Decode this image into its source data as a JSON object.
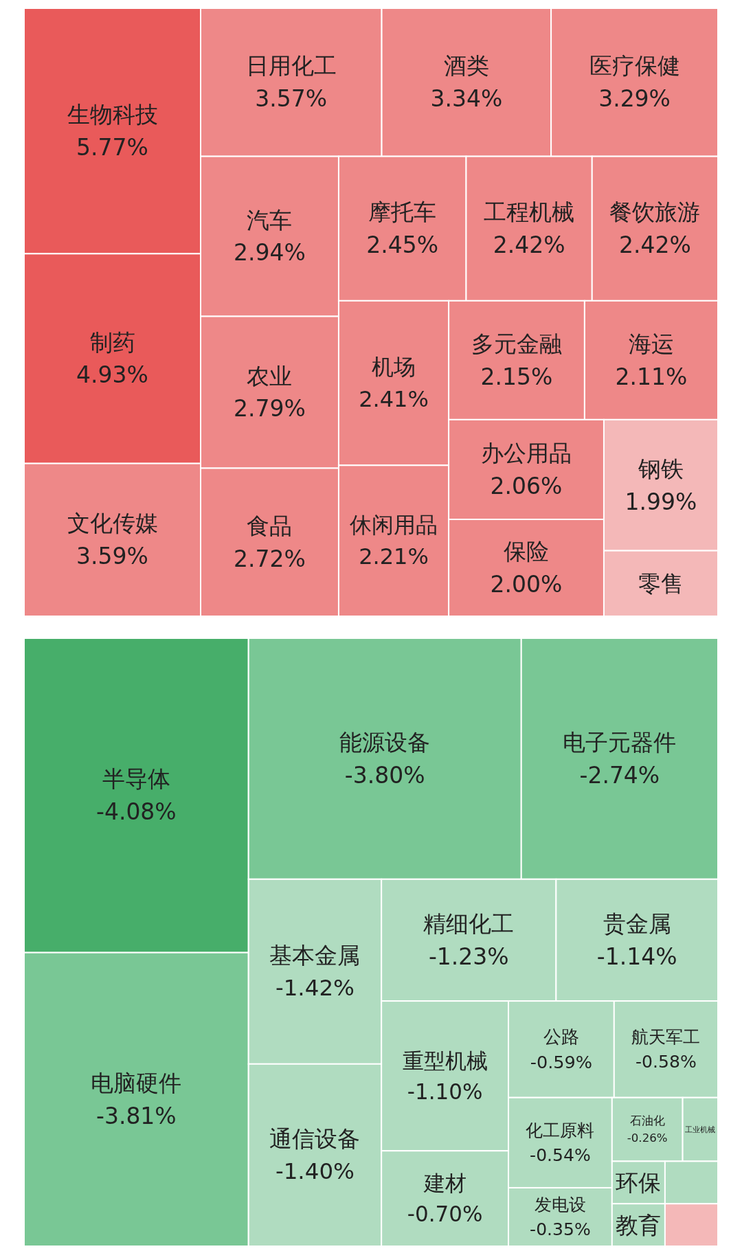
{
  "chart_data": [
    {
      "type": "other",
      "categories": [
        "生物科技",
        "制药",
        "文化传媒",
        "日用化工",
        "酒类",
        "医疗保健",
        "汽车",
        "农业",
        "食品",
        "摩托车",
        "工程机械",
        "餐饮旅游",
        "机场",
        "休闲用品",
        "多元金融",
        "海运",
        "办公用品",
        "保险",
        "钢铁",
        "零售"
      ],
      "values": [
        5.77,
        4.93,
        3.59,
        3.57,
        3.34,
        3.29,
        2.94,
        2.79,
        2.72,
        2.45,
        2.42,
        2.42,
        2.41,
        2.21,
        2.15,
        2.11,
        2.06,
        2.0,
        1.99,
        null
      ],
      "value_labels": [
        "5.77%",
        "4.93%",
        "3.59%",
        "3.57%",
        "3.34%",
        "3.29%",
        "2.94%",
        "2.79%",
        "2.72%",
        "2.45%",
        "2.42%",
        "2.42%",
        "2.41%",
        "2.21%",
        "2.15%",
        "2.11%",
        "2.06%",
        "2.00%",
        "1.99%",
        null
      ],
      "colors": [
        "#e95a5a",
        "#e95a5a",
        "#ee8888",
        "#ee8888",
        "#ee8888",
        "#ee8888",
        "#ee8888",
        "#ee8888",
        "#ee8888",
        "#ee8888",
        "#ee8888",
        "#ee8888",
        "#ee8888",
        "#ee8888",
        "#ee8888",
        "#ee8888",
        "#ee8888",
        "#ee8888",
        "#f4b8b8",
        "#f4b8b8"
      ]
    },
    {
      "type": "other",
      "categories": [
        "半导体",
        "电脑硬件",
        "能源设备",
        "电子元器件",
        "基本金属",
        "通信设备",
        "精细化工",
        "贵金属",
        "重型机械",
        "建材",
        "公路",
        "航天军工",
        "化工原料",
        "发电设",
        "石油化",
        "工业机械",
        "环保",
        "教育",
        null,
        null
      ],
      "values": [
        -4.08,
        -3.81,
        -3.8,
        -2.74,
        -1.42,
        -1.4,
        -1.23,
        -1.14,
        -1.1,
        -0.7,
        -0.59,
        -0.58,
        -0.54,
        -0.35,
        -0.26,
        null,
        null,
        null,
        null,
        null
      ],
      "value_labels": [
        "-4.08%",
        "-3.81%",
        "-3.80%",
        "-2.74%",
        "-1.42%",
        "-1.40%",
        "-1.23%",
        "-1.14%",
        "-1.10%",
        "-0.70%",
        "-0.59%",
        "-0.58%",
        "-0.54%",
        "-0.35%",
        "-0.26%",
        null,
        null,
        null,
        null,
        null
      ],
      "colors": [
        "#47ae6a",
        "#79c795",
        "#79c795",
        "#79c795",
        "#b0dcc0",
        "#b0dcc0",
        "#b0dcc0",
        "#b0dcc0",
        "#b0dcc0",
        "#b0dcc0",
        "#b0dcc0",
        "#b0dcc0",
        "#b0dcc0",
        "#b0dcc0",
        "#b0dcc0",
        "#b0dcc0",
        "#b0dcc0",
        "#b0dcc0",
        "#b0dcc0",
        "#f4b8b8"
      ]
    }
  ]
}
